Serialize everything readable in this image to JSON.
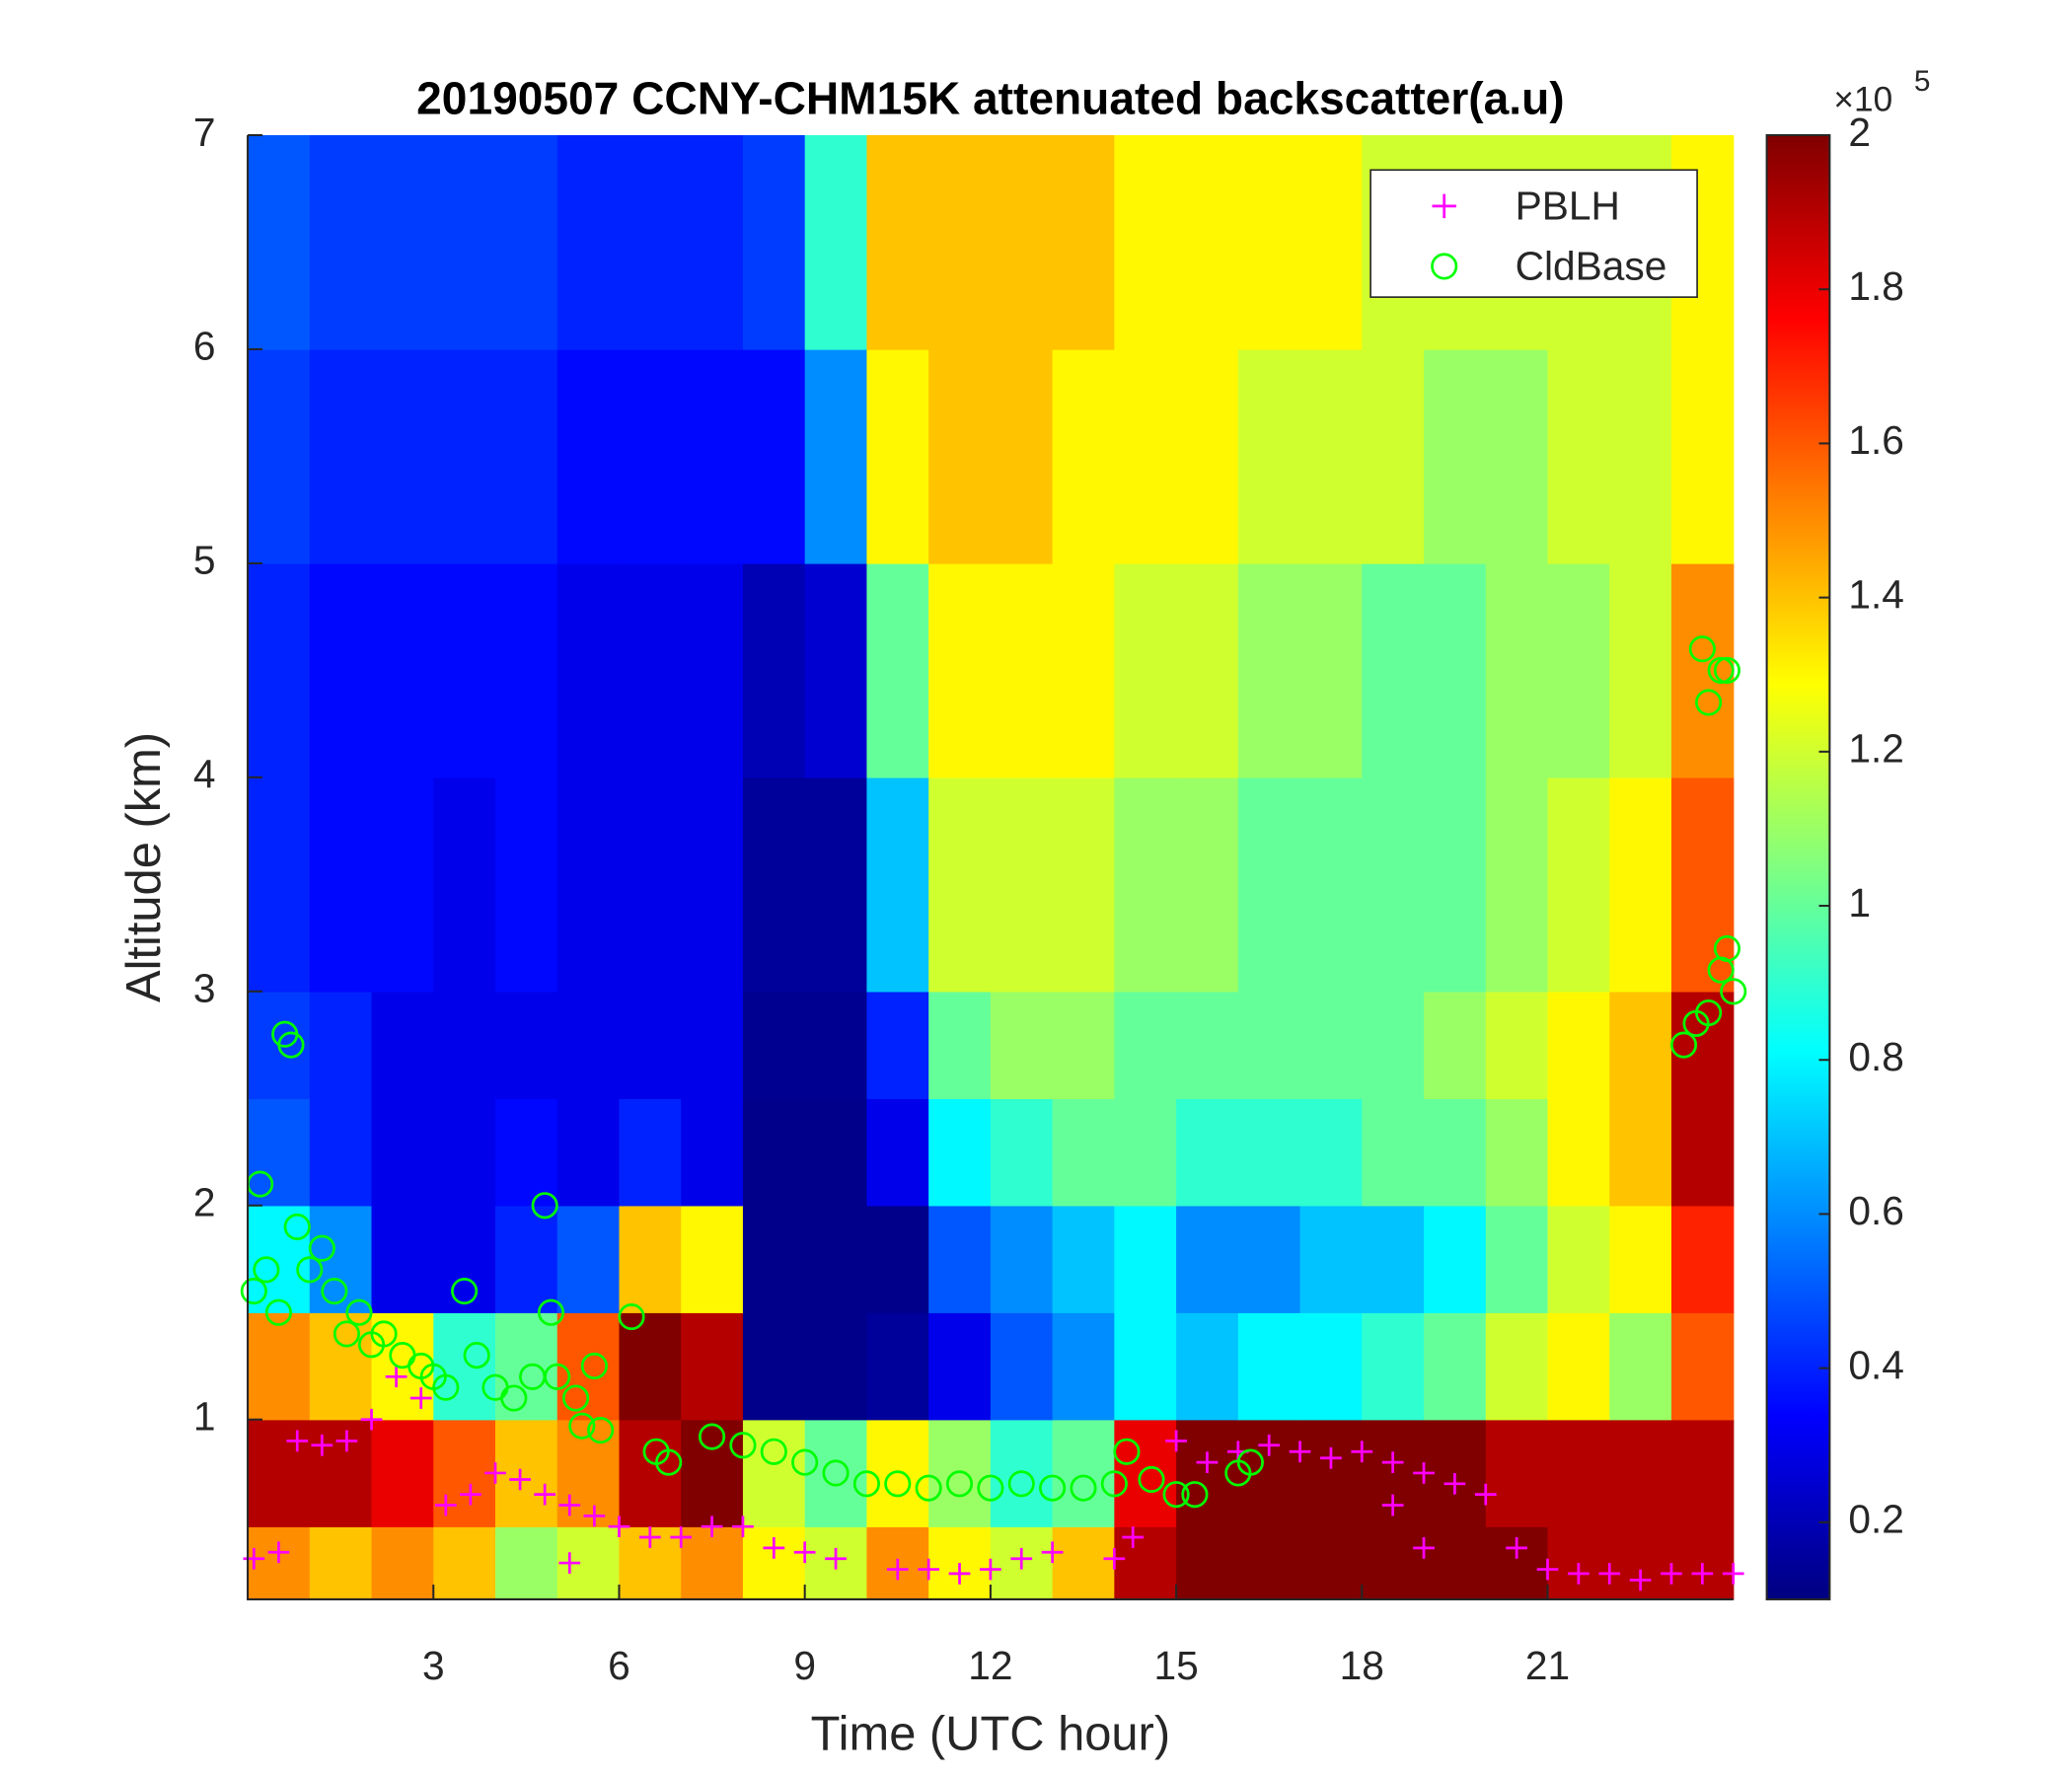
{
  "chart_data": {
    "type": "heatmap",
    "title": "20190507 CCNY-CHM15K attenuated backscatter(a.u)",
    "xlabel": "Time (UTC hour)",
    "ylabel": "Altitude (km)",
    "xlim": [
      0,
      24
    ],
    "xticks": [
      3,
      6,
      9,
      12,
      15,
      18,
      21
    ],
    "ylim": [
      0.16,
      7
    ],
    "yticks": [
      1,
      2,
      3,
      4,
      5,
      6,
      7
    ],
    "x_edges": [
      0,
      1,
      2,
      3,
      4,
      5,
      6,
      7,
      8,
      9,
      10,
      11,
      12,
      13,
      14,
      15,
      16,
      17,
      18,
      19,
      20,
      21,
      22,
      23,
      24
    ],
    "y_edges": [
      0.16,
      0.5,
      1,
      1.5,
      2,
      2.5,
      3,
      4,
      5,
      6,
      7
    ],
    "z": [
      [
        1.5,
        1.4,
        1.5,
        1.4,
        1.1,
        1.2,
        1.4,
        1.5,
        1.3,
        1.2,
        1.5,
        1.3,
        1.2,
        1.4,
        1.9,
        2,
        2,
        2,
        2,
        2,
        2,
        1.9,
        1.9,
        1.9
      ],
      [
        1.9,
        1.9,
        1.8,
        1.6,
        1.4,
        1.5,
        1.9,
        2,
        1.2,
        1.0,
        1.3,
        1.1,
        0.9,
        1.0,
        1.8,
        2,
        2,
        2,
        2,
        2,
        1.9,
        1.9,
        1.9,
        1.9
      ],
      [
        1.5,
        1.4,
        1.3,
        0.9,
        1.0,
        1.6,
        2,
        1.9,
        0.12,
        0.12,
        0.15,
        0.3,
        0.5,
        0.6,
        0.8,
        0.7,
        0.8,
        0.8,
        0.9,
        1.0,
        1.2,
        1.3,
        1.1,
        1.6
      ],
      [
        0.8,
        0.6,
        0.3,
        0.3,
        0.4,
        0.5,
        1.4,
        1.3,
        0.12,
        0.12,
        0.12,
        0.5,
        0.6,
        0.7,
        0.8,
        0.6,
        0.6,
        0.7,
        0.7,
        0.8,
        1.0,
        1.2,
        1.3,
        1.7
      ],
      [
        0.5,
        0.4,
        0.3,
        0.3,
        0.35,
        0.3,
        0.4,
        0.3,
        0.12,
        0.12,
        0.3,
        0.8,
        0.9,
        1.0,
        1.0,
        0.9,
        0.9,
        0.9,
        1.0,
        1.0,
        1.1,
        1.3,
        1.4,
        1.9
      ],
      [
        0.45,
        0.4,
        0.3,
        0.3,
        0.3,
        0.3,
        0.3,
        0.3,
        0.13,
        0.13,
        0.4,
        1.0,
        1.1,
        1.1,
        1.0,
        1.0,
        1.0,
        1.0,
        1.0,
        1.1,
        1.2,
        1.3,
        1.4,
        1.9
      ],
      [
        0.4,
        0.35,
        0.35,
        0.3,
        0.35,
        0.3,
        0.3,
        0.3,
        0.15,
        0.15,
        0.7,
        1.2,
        1.2,
        1.2,
        1.1,
        1.1,
        1.0,
        1.0,
        1.0,
        1.0,
        1.1,
        1.2,
        1.3,
        1.6
      ],
      [
        0.4,
        0.35,
        0.35,
        0.35,
        0.35,
        0.3,
        0.3,
        0.3,
        0.2,
        0.25,
        1.0,
        1.3,
        1.3,
        1.3,
        1.2,
        1.2,
        1.1,
        1.1,
        1.0,
        1.0,
        1.1,
        1.1,
        1.2,
        1.5
      ],
      [
        0.45,
        0.4,
        0.4,
        0.4,
        0.4,
        0.35,
        0.35,
        0.35,
        0.35,
        0.6,
        1.3,
        1.4,
        1.4,
        1.3,
        1.3,
        1.3,
        1.2,
        1.2,
        1.2,
        1.1,
        1.1,
        1.2,
        1.2,
        1.3
      ],
      [
        0.5,
        0.45,
        0.45,
        0.45,
        0.45,
        0.4,
        0.4,
        0.4,
        0.45,
        0.9,
        1.4,
        1.4,
        1.4,
        1.4,
        1.3,
        1.3,
        1.3,
        1.3,
        1.2,
        1.2,
        1.2,
        1.2,
        1.2,
        1.3
      ]
    ],
    "colormap": "jet",
    "clim": [
      0.1,
      2
    ],
    "cticks": [
      0.2,
      0.4,
      0.6,
      0.8,
      1,
      1.2,
      1.4,
      1.6,
      1.8,
      2
    ],
    "colorbar_multiplier": "×10",
    "colorbar_exponent": 5,
    "legend": "upper right",
    "series": [
      {
        "name": "PBLH",
        "marker": "+",
        "color": "#ff00ff",
        "x": [
          0.1,
          0.5,
          0.8,
          1.2,
          1.6,
          2,
          2.4,
          2.8,
          3.2,
          3.6,
          4.0,
          4.4,
          4.8,
          5.2,
          5.6,
          6,
          6.5,
          7,
          7.5,
          8,
          8.5,
          9,
          9.5,
          10.5,
          11,
          11.5,
          12,
          12.5,
          13,
          14,
          14.3,
          15,
          15.5,
          16,
          16.5,
          17,
          17.5,
          18,
          18.5,
          19,
          19.5,
          20,
          19,
          20.5,
          21,
          21.5,
          22,
          22.5,
          23,
          23.5,
          24,
          5.2,
          18.5
        ],
        "y": [
          0.35,
          0.38,
          0.9,
          0.88,
          0.9,
          1.0,
          1.2,
          1.1,
          0.6,
          0.65,
          0.75,
          0.72,
          0.65,
          0.6,
          0.55,
          0.5,
          0.45,
          0.45,
          0.5,
          0.5,
          0.4,
          0.38,
          0.35,
          0.3,
          0.3,
          0.28,
          0.3,
          0.35,
          0.38,
          0.35,
          0.45,
          0.9,
          0.8,
          0.85,
          0.88,
          0.85,
          0.82,
          0.85,
          0.8,
          0.75,
          0.7,
          0.65,
          0.4,
          0.4,
          0.3,
          0.28,
          0.28,
          0.25,
          0.28,
          0.28,
          0.28,
          0.33,
          0.6
        ]
      },
      {
        "name": "CldBase",
        "marker": "o",
        "color": "#00ff00",
        "x": [
          0.1,
          0.2,
          0.3,
          0.6,
          0.7,
          0.5,
          0.8,
          1,
          1.2,
          1.4,
          1.6,
          1.8,
          2,
          2.2,
          2.5,
          2.8,
          3,
          3.2,
          3.5,
          3.7,
          4,
          4.3,
          4.6,
          4.8,
          4.9,
          5,
          5.3,
          5.6,
          5.4,
          5.7,
          6.2,
          6.6,
          6.8,
          7.5,
          8,
          8.5,
          9,
          9.5,
          10,
          10.5,
          11,
          11.5,
          12,
          12.5,
          13,
          13.5,
          14,
          14.2,
          14.6,
          15,
          15.3,
          16,
          16.2,
          23.2,
          23.4,
          23.6,
          23.8,
          23.9,
          24,
          23.5,
          23.6,
          23.8,
          23.9
        ],
        "y": [
          1.6,
          2.1,
          1.7,
          2.8,
          2.75,
          1.5,
          1.9,
          1.7,
          1.8,
          1.6,
          1.4,
          1.5,
          1.35,
          1.4,
          1.3,
          1.25,
          1.2,
          1.15,
          1.6,
          1.3,
          1.15,
          1.1,
          1.2,
          2.0,
          1.5,
          1.2,
          1.1,
          1.25,
          0.97,
          0.95,
          1.48,
          0.85,
          0.8,
          0.92,
          0.88,
          0.85,
          0.8,
          0.75,
          0.7,
          0.7,
          0.68,
          0.7,
          0.68,
          0.7,
          0.68,
          0.68,
          0.7,
          0.85,
          0.72,
          0.65,
          0.65,
          0.75,
          0.8,
          2.75,
          2.85,
          2.9,
          3.1,
          3.2,
          3.0,
          4.6,
          4.35,
          4.5,
          4.5
        ]
      }
    ]
  }
}
